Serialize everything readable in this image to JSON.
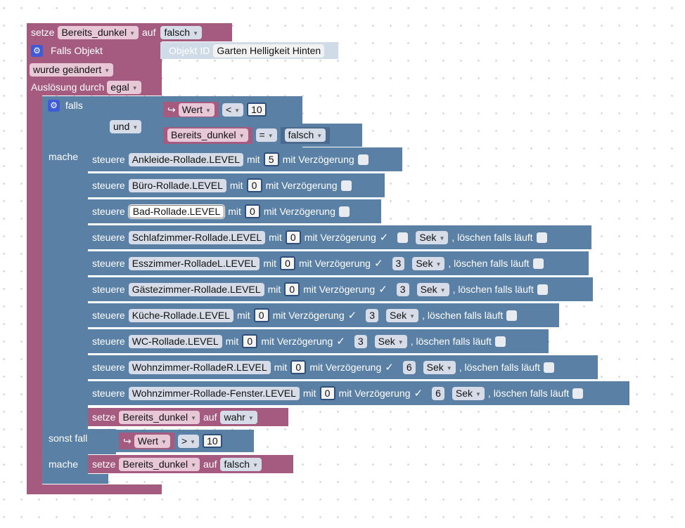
{
  "top_set": {
    "keyword": "setze",
    "variable": "Bereits_dunkel",
    "auf": "auf",
    "value": "falsch"
  },
  "trigger": {
    "title": "Falls Objekt",
    "object_id_label": "Objekt ID",
    "object_id_value": "Garten Helligkeit Hinten",
    "changed_option": "wurde geändert",
    "trigger_label": "Auslösung durch",
    "trigger_option": "egal"
  },
  "if_block": {
    "falls": "falls",
    "mache": "mache",
    "sonst_falls": "sonst falls",
    "mache2": "mache",
    "logic_op": "und",
    "cond1": {
      "arrow": "↪",
      "var": "Wert",
      "op": "<",
      "value": "10"
    },
    "cond2": {
      "var": "Bereits_dunkel",
      "op": "=",
      "value": "falsch"
    },
    "cond3": {
      "arrow": "↪",
      "var": "Wert",
      "op": ">",
      "value": "10"
    }
  },
  "steuere_rows": [
    {
      "kw": "steuere",
      "obj": "Ankleide-Rollade.LEVEL",
      "mit": "mit",
      "val": "5",
      "delay_label": "mit Verzögerung",
      "checked": false
    },
    {
      "kw": "steuere",
      "obj": "Büro-Rollade.LEVEL",
      "mit": "mit",
      "val": "0",
      "delay_label": "mit Verzögerung",
      "checked": false
    },
    {
      "kw": "steuere",
      "obj": "Bad-Rollade.LEVEL",
      "mit": "mit",
      "val": "0",
      "delay_label": "mit Verzögerung",
      "checked": false
    },
    {
      "kw": "steuere",
      "obj": "Schlafzimmer-Rollade.LEVEL",
      "mit": "mit",
      "val": "0",
      "delay_label": "mit Verzögerung",
      "checked": true,
      "delay": "",
      "unit": "Sek",
      "clear_label": ", löschen falls läuft"
    },
    {
      "kw": "steuere",
      "obj": "Esszimmer-RolladeL.LEVEL",
      "mit": "mit",
      "val": "0",
      "delay_label": "mit Verzögerung",
      "checked": true,
      "delay": "3",
      "unit": "Sek",
      "clear_label": ", löschen falls läuft"
    },
    {
      "kw": "steuere",
      "obj": "Gästezimmer-Rollade.LEVEL",
      "mit": "mit",
      "val": "0",
      "delay_label": "mit Verzögerung",
      "checked": true,
      "delay": "3",
      "unit": "Sek",
      "clear_label": ", löschen falls läuft"
    },
    {
      "kw": "steuere",
      "obj": "Küche-Rollade.LEVEL",
      "mit": "mit",
      "val": "0",
      "delay_label": "mit Verzögerung",
      "checked": true,
      "delay": "3",
      "unit": "Sek",
      "clear_label": ", löschen falls läuft"
    },
    {
      "kw": "steuere",
      "obj": "WC-Rollade.LEVEL",
      "mit": "mit",
      "val": "0",
      "delay_label": "mit Verzögerung",
      "checked": true,
      "delay": "3",
      "unit": "Sek",
      "clear_label": ", löschen falls läuft"
    },
    {
      "kw": "steuere",
      "obj": "Wohnzimmer-RolladeR.LEVEL",
      "mit": "mit",
      "val": "0",
      "delay_label": "mit Verzögerung",
      "checked": true,
      "delay": "6",
      "unit": "Sek",
      "clear_label": ", löschen falls läuft"
    },
    {
      "kw": "steuere",
      "obj": "Wohnzimmer-Rollade-Fenster.LEVEL",
      "mit": "mit",
      "val": "0",
      "delay_label": "mit Verzögerung",
      "checked": true,
      "delay": "6",
      "unit": "Sek",
      "clear_label": ", löschen falls läuft"
    }
  ],
  "set_true": {
    "keyword": "setze",
    "variable": "Bereits_dunkel",
    "auf": "auf",
    "value": "wahr"
  },
  "set_false": {
    "keyword": "setze",
    "variable": "Bereits_dunkel",
    "auf": "auf",
    "value": "falsch"
  },
  "colors": {
    "variable_block": "#a55b80",
    "control_block": "#5b80a5",
    "background": "#ffffff",
    "grid_dot": "#c6c6c6"
  }
}
